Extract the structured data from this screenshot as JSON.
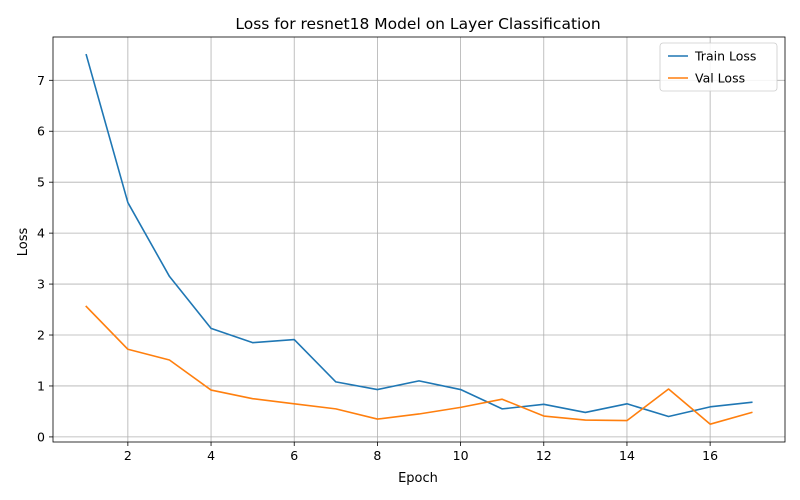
{
  "chart_data": {
    "type": "line",
    "title": "Loss for resnet18 Model on Layer Classification",
    "xlabel": "Epoch",
    "ylabel": "Loss",
    "x": [
      1,
      2,
      3,
      4,
      5,
      6,
      7,
      8,
      9,
      10,
      11,
      12,
      13,
      14,
      15,
      16,
      17
    ],
    "xlim": [
      0.2,
      17.8
    ],
    "ylim": [
      -0.1,
      7.85
    ],
    "xticks": [
      2,
      4,
      6,
      8,
      10,
      12,
      14,
      16
    ],
    "yticks": [
      0,
      1,
      2,
      3,
      4,
      5,
      6,
      7
    ],
    "grid": true,
    "legend_position": "top-right",
    "series": [
      {
        "name": "Train Loss",
        "color": "#1f77b4",
        "values": [
          7.5,
          4.6,
          3.15,
          2.13,
          1.85,
          1.91,
          1.08,
          0.93,
          1.1,
          0.93,
          0.55,
          0.64,
          0.48,
          0.65,
          0.4,
          0.59,
          0.68
        ]
      },
      {
        "name": "Val Loss",
        "color": "#ff7f0e",
        "values": [
          2.56,
          1.72,
          1.51,
          0.92,
          0.75,
          0.65,
          0.55,
          0.35,
          0.45,
          0.58,
          0.74,
          0.41,
          0.33,
          0.32,
          0.94,
          0.25,
          0.48
        ]
      }
    ]
  }
}
